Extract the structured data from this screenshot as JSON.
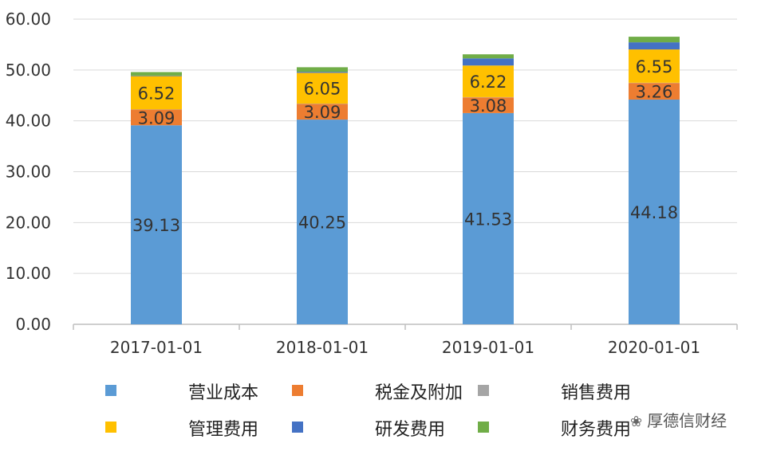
{
  "chart_data": {
    "type": "bar",
    "stacked": true,
    "categories": [
      "2017-01-01",
      "2018-01-01",
      "2019-01-01",
      "2020-01-01"
    ],
    "ylim": [
      0,
      60
    ],
    "yticks": [
      "0.00",
      "10.00",
      "20.00",
      "30.00",
      "40.00",
      "50.00",
      "60.00"
    ],
    "grid": true,
    "legend_position": "bottom",
    "series": [
      {
        "name": "营业成本",
        "color": "#5b9bd5",
        "values": [
          39.13,
          40.25,
          41.53,
          44.18
        ],
        "labels": [
          "39.13",
          "40.25",
          "41.53",
          "44.18"
        ]
      },
      {
        "name": "税金及附加",
        "color": "#ed7d31",
        "values": [
          3.09,
          3.09,
          3.08,
          3.26
        ],
        "labels": [
          "3.09",
          "3.09",
          "3.08",
          "3.26"
        ]
      },
      {
        "name": "销售费用",
        "color": "#a5a5a5",
        "values": [
          0.05,
          0.05,
          0.05,
          0.05
        ],
        "labels": [
          "",
          "",
          "",
          ""
        ]
      },
      {
        "name": "管理费用",
        "color": "#ffc000",
        "values": [
          6.52,
          6.05,
          6.22,
          6.55
        ],
        "labels": [
          "6.52",
          "6.05",
          "6.22",
          "6.55"
        ]
      },
      {
        "name": "研发费用",
        "color": "#4472c4",
        "values": [
          0.1,
          0.2,
          1.4,
          1.4
        ],
        "labels": [
          "",
          "",
          "",
          ""
        ]
      },
      {
        "name": "财务费用",
        "color": "#70ad47",
        "values": [
          0.7,
          0.9,
          0.8,
          1.1
        ],
        "labels": [
          "",
          "",
          "",
          ""
        ]
      }
    ]
  },
  "watermark": {
    "text": "厚德信财经",
    "icon": "wechat-icon"
  }
}
